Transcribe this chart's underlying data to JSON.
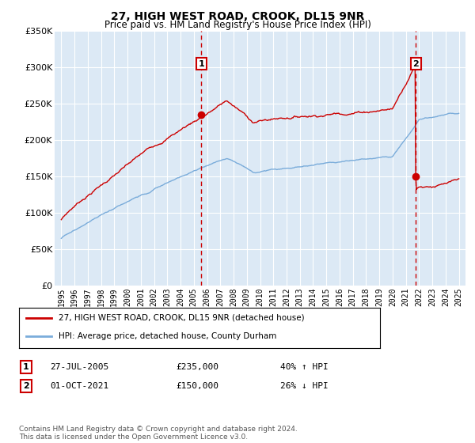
{
  "title": "27, HIGH WEST ROAD, CROOK, DL15 9NR",
  "subtitle": "Price paid vs. HM Land Registry's House Price Index (HPI)",
  "legend_line1": "27, HIGH WEST ROAD, CROOK, DL15 9NR (detached house)",
  "legend_line2": "HPI: Average price, detached house, County Durham",
  "annotation1_label": "1",
  "annotation1_date": "27-JUL-2005",
  "annotation1_price": "£235,000",
  "annotation1_hpi": "40% ↑ HPI",
  "annotation1_year": 2005.57,
  "annotation1_value": 235000,
  "annotation2_label": "2",
  "annotation2_date": "01-OCT-2021",
  "annotation2_price": "£150,000",
  "annotation2_hpi": "26% ↓ HPI",
  "annotation2_year": 2021.75,
  "annotation2_value": 150000,
  "footer": "Contains HM Land Registry data © Crown copyright and database right 2024.\nThis data is licensed under the Open Government Licence v3.0.",
  "ylim": [
    0,
    350000
  ],
  "yticks": [
    0,
    50000,
    100000,
    150000,
    200000,
    250000,
    300000,
    350000
  ],
  "xlim_start": 1994.5,
  "xlim_end": 2025.5,
  "background_color": "#dce9f5",
  "grid_color": "#ffffff",
  "red_line_color": "#cc0000",
  "blue_line_color": "#7aacda",
  "vline_color": "#cc0000"
}
